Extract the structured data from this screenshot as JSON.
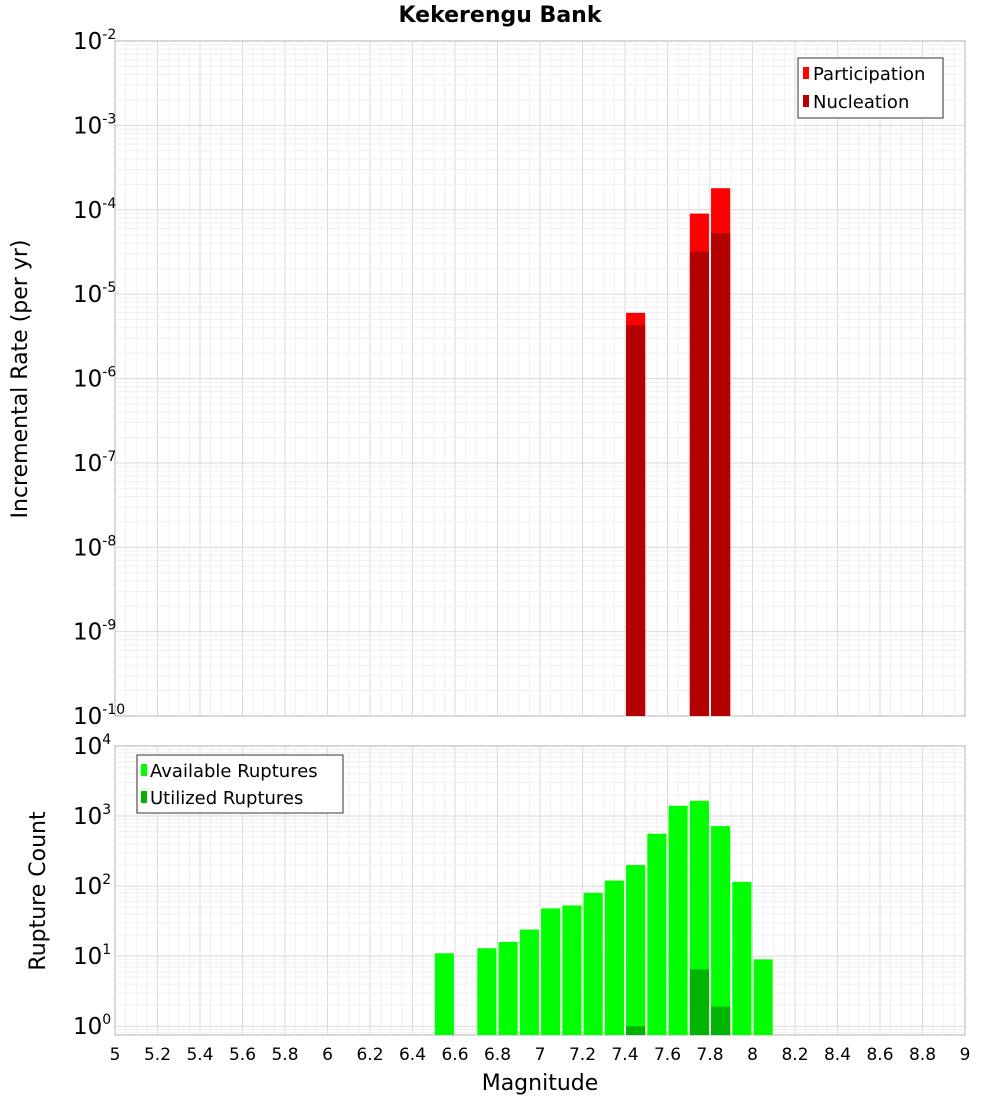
{
  "chart_data": [
    {
      "type": "bar",
      "title": "Kekerengu Bank",
      "xlabel": "",
      "ylabel": "Incremental Rate (per yr)",
      "xlim": [
        5,
        9
      ],
      "ylim": [
        1e-10,
        0.01
      ],
      "yscale": "log",
      "grid": true,
      "legend_position": "top-right",
      "bar_width": 0.09,
      "yticks": [
        {
          "base": "10",
          "exp": "-10",
          "value": 1e-10
        },
        {
          "base": "10",
          "exp": "-9",
          "value": 1e-09
        },
        {
          "base": "10",
          "exp": "-8",
          "value": 1e-08
        },
        {
          "base": "10",
          "exp": "-7",
          "value": 1e-07
        },
        {
          "base": "10",
          "exp": "-6",
          "value": 1e-06
        },
        {
          "base": "10",
          "exp": "-5",
          "value": 1e-05
        },
        {
          "base": "10",
          "exp": "-4",
          "value": 0.0001
        },
        {
          "base": "10",
          "exp": "-3",
          "value": 0.001
        },
        {
          "base": "10",
          "exp": "-2",
          "value": 0.01
        }
      ],
      "series": [
        {
          "name": "Participation",
          "color": "#ff0000",
          "points": [
            {
              "x": 7.45,
              "y": 6e-06
            },
            {
              "x": 7.75,
              "y": 9e-05
            },
            {
              "x": 7.85,
              "y": 0.00018
            }
          ]
        },
        {
          "name": "Nucleation",
          "color": "#b30000",
          "points": [
            {
              "x": 7.45,
              "y": 4.3e-06
            },
            {
              "x": 7.75,
              "y": 3.2e-05
            },
            {
              "x": 7.85,
              "y": 5.3e-05
            }
          ]
        }
      ]
    },
    {
      "type": "bar",
      "title": "",
      "xlabel": "Magnitude",
      "ylabel": "Rupture Count",
      "xlim": [
        5,
        9
      ],
      "ylim": [
        0.75,
        10000
      ],
      "yscale": "log",
      "grid": true,
      "legend_position": "top-left",
      "bar_width": 0.09,
      "xticks": [
        "5",
        "5.2",
        "5.4",
        "5.6",
        "5.8",
        "6",
        "6.2",
        "6.4",
        "6.6",
        "6.8",
        "7",
        "7.2",
        "7.4",
        "7.6",
        "7.8",
        "8",
        "8.2",
        "8.4",
        "8.6",
        "8.8",
        "9"
      ],
      "yticks": [
        {
          "base": "10",
          "exp": "0",
          "value": 1
        },
        {
          "base": "10",
          "exp": "1",
          "value": 10
        },
        {
          "base": "10",
          "exp": "2",
          "value": 100
        },
        {
          "base": "10",
          "exp": "3",
          "value": 1000
        },
        {
          "base": "10",
          "exp": "4",
          "value": 10000
        }
      ],
      "series": [
        {
          "name": "Available Ruptures",
          "color": "#00ff00",
          "points": [
            {
              "x": 6.55,
              "y": 11
            },
            {
              "x": 6.75,
              "y": 13
            },
            {
              "x": 6.85,
              "y": 16
            },
            {
              "x": 6.95,
              "y": 24
            },
            {
              "x": 7.05,
              "y": 48
            },
            {
              "x": 7.15,
              "y": 53
            },
            {
              "x": 7.25,
              "y": 80
            },
            {
              "x": 7.35,
              "y": 120
            },
            {
              "x": 7.45,
              "y": 200
            },
            {
              "x": 7.55,
              "y": 560
            },
            {
              "x": 7.65,
              "y": 1400
            },
            {
              "x": 7.75,
              "y": 1650
            },
            {
              "x": 7.85,
              "y": 720
            },
            {
              "x": 7.95,
              "y": 115
            },
            {
              "x": 8.05,
              "y": 9
            }
          ]
        },
        {
          "name": "Utilized Ruptures",
          "color": "#00b300",
          "points": [
            {
              "x": 7.45,
              "y": 1
            },
            {
              "x": 7.75,
              "y": 6.5
            },
            {
              "x": 7.85,
              "y": 1.9
            }
          ]
        }
      ]
    }
  ]
}
